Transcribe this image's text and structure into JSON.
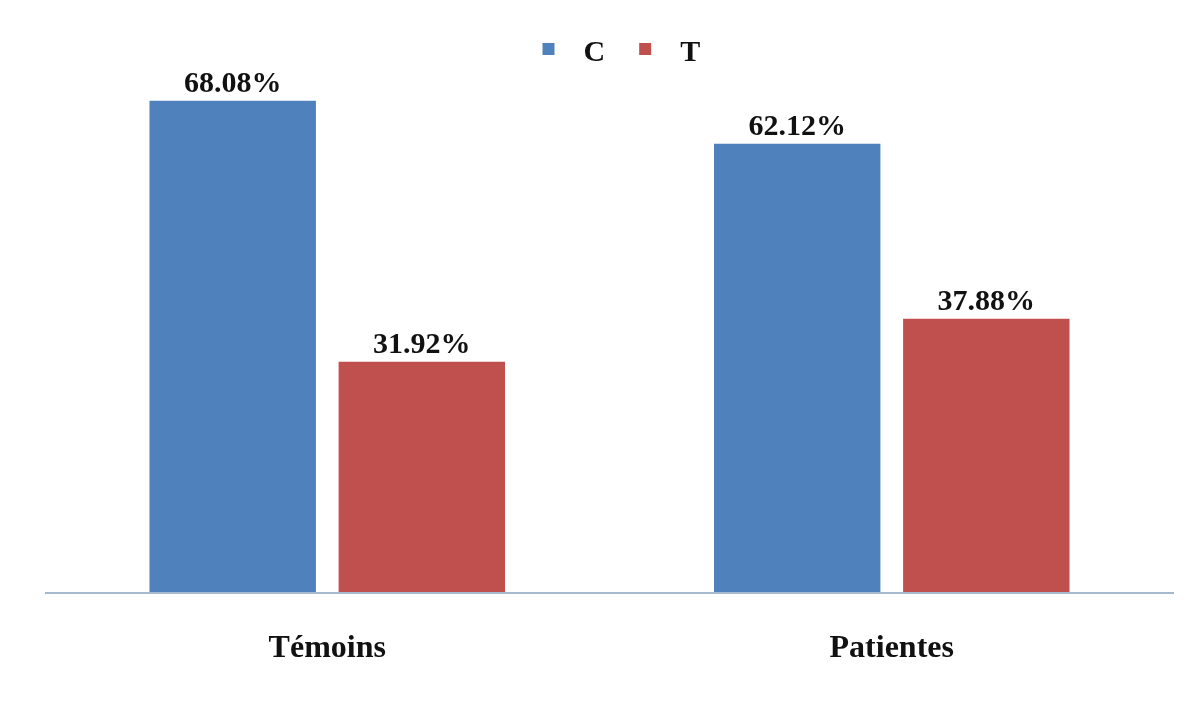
{
  "chart_data": {
    "type": "bar",
    "categories": [
      "Témoins",
      "Patientes"
    ],
    "series": [
      {
        "name": "C",
        "color": "#4f81bd",
        "values": [
          68.08,
          62.12
        ],
        "value_labels": [
          "68.08%",
          "62.12%"
        ]
      },
      {
        "name": "T",
        "color": "#c0504d",
        "values": [
          31.92,
          37.88
        ],
        "value_labels": [
          "31.92%",
          "37.88%"
        ]
      }
    ],
    "legend": "top"
  }
}
